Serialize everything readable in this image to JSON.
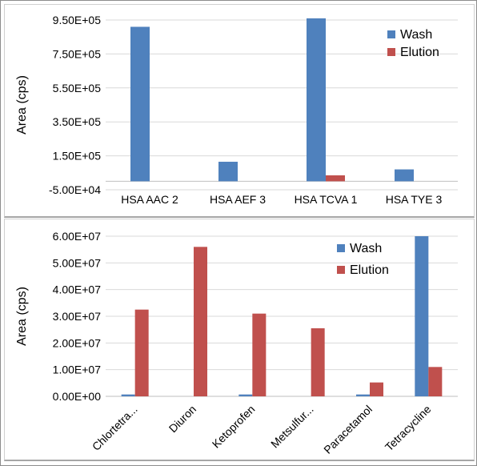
{
  "colors": {
    "wash": "#4f81bd",
    "elution": "#c0504d"
  },
  "chart_data": [
    {
      "type": "bar",
      "ylabel": "Area (cps)",
      "categories": [
        "HSA AAC 2",
        "HSA AEF 3",
        "HSA TCVA 1",
        "HSA TYE 3"
      ],
      "yticks": [
        "-5.00E+04",
        "1.50E+05",
        "3.50E+05",
        "5.50E+05",
        "7.50E+05",
        "9.50E+05"
      ],
      "ytick_values": [
        -50000,
        150000,
        350000,
        550000,
        750000,
        950000
      ],
      "ylim": [
        -50000,
        950000
      ],
      "legend": "top-right",
      "series": [
        {
          "name": "Wash",
          "values": [
            910000,
            115000,
            960000,
            70000
          ]
        },
        {
          "name": "Elution",
          "values": [
            0,
            0,
            35000,
            0
          ]
        }
      ]
    },
    {
      "type": "bar",
      "ylabel": "Area (cps)",
      "categories": [
        "Chlortetra...",
        "Diuron",
        "Ketoprofen",
        "Metsulfur...",
        "Paracetamol",
        "Tetracycline"
      ],
      "yticks": [
        "0.00E+00",
        "1.00E+07",
        "2.00E+07",
        "3.00E+07",
        "4.00E+07",
        "5.00E+07",
        "6.00E+07"
      ],
      "ytick_values": [
        0,
        10000000,
        20000000,
        30000000,
        40000000,
        50000000,
        60000000
      ],
      "ylim": [
        0,
        60000000
      ],
      "legend": "top-right",
      "series": [
        {
          "name": "Wash",
          "values": [
            700000,
            0,
            700000,
            0,
            700000,
            60000000
          ]
        },
        {
          "name": "Elution",
          "values": [
            32500000,
            56000000,
            31000000,
            25500000,
            5200000,
            11000000
          ]
        }
      ]
    }
  ]
}
